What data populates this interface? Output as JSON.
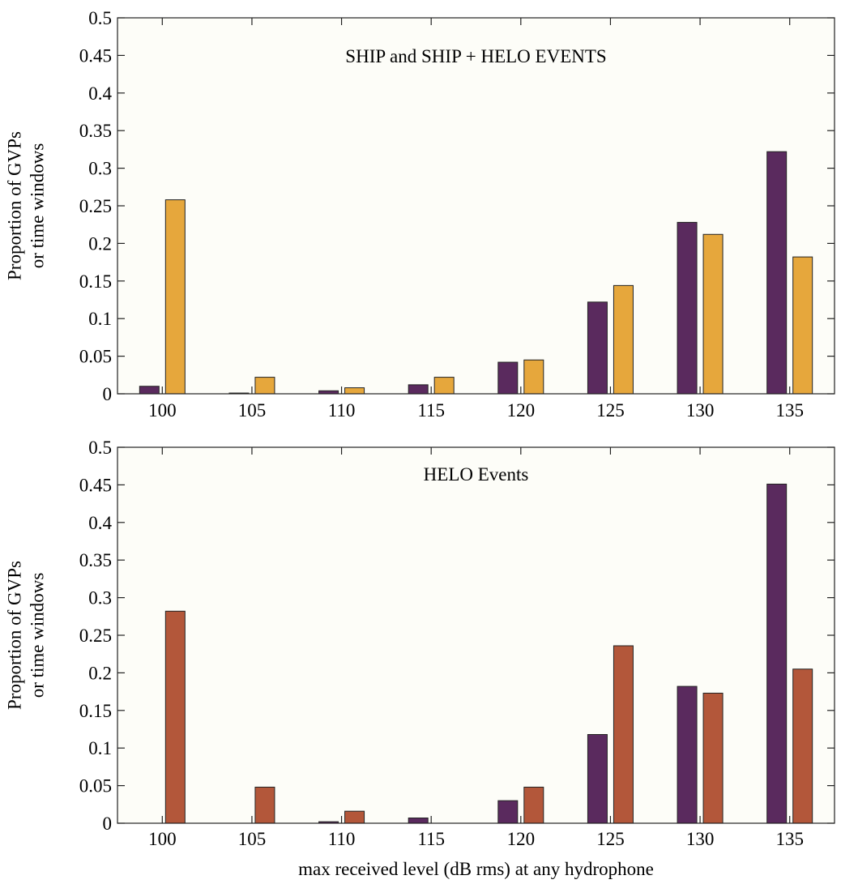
{
  "chart_data": [
    {
      "type": "bar",
      "title": "SHIP and SHIP + HELO EVENTS",
      "ylabel": [
        "Proportion of GVPs",
        "or time windows"
      ],
      "xlabel": "",
      "categories": [
        "100",
        "105",
        "110",
        "115",
        "120",
        "125",
        "130",
        "135"
      ],
      "ylim": [
        0,
        0.5
      ],
      "yticks": [
        "0",
        "0.05",
        "0.1",
        "0.15",
        "0.2",
        "0.25",
        "0.3",
        "0.35",
        "0.4",
        "0.45",
        "0.5"
      ],
      "grid": false,
      "series": [
        {
          "color": "#5a2a5e",
          "values": [
            0.01,
            0.001,
            0.004,
            0.012,
            0.042,
            0.122,
            0.228,
            0.322
          ]
        },
        {
          "color": "#e6a73c",
          "values": [
            0.258,
            0.022,
            0.008,
            0.022,
            0.045,
            0.144,
            0.212,
            0.182
          ]
        }
      ]
    },
    {
      "type": "bar",
      "title": "HELO Events",
      "ylabel": [
        "Proportion of GVPs",
        "or time windows"
      ],
      "xlabel": "max received level (dB rms) at any hydrophone",
      "categories": [
        "100",
        "105",
        "110",
        "115",
        "120",
        "125",
        "130",
        "135"
      ],
      "ylim": [
        0,
        0.5
      ],
      "yticks": [
        "0",
        "0.05",
        "0.1",
        "0.15",
        "0.2",
        "0.25",
        "0.3",
        "0.35",
        "0.4",
        "0.45",
        "0.5"
      ],
      "grid": false,
      "series": [
        {
          "color": "#5a2a5e",
          "values": [
            0,
            0,
            0.002,
            0.007,
            0.03,
            0.118,
            0.182,
            0.451
          ]
        },
        {
          "color": "#b3573a",
          "values": [
            0.282,
            0.048,
            0.016,
            0,
            0.048,
            0.236,
            0.173,
            0.205
          ]
        }
      ]
    }
  ],
  "style": {
    "background": "#fdfdf8",
    "frame": "#222222"
  }
}
